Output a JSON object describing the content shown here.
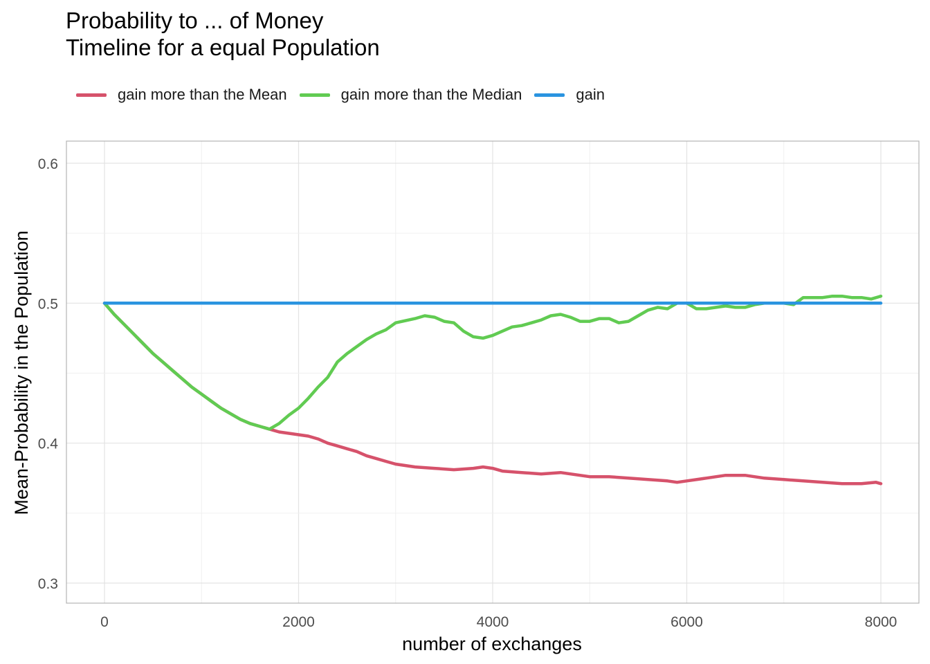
{
  "chart_data": {
    "type": "line",
    "title_line1": "Probability to ... of Money",
    "title_line2": "Timeline for a equal Population",
    "xlabel": "number of exchanges",
    "ylabel": "Mean-Probability in the Population",
    "xlim": [
      -400,
      8400
    ],
    "ylim": [
      0.285,
      0.615
    ],
    "x_ticks": [
      0,
      2000,
      4000,
      6000,
      8000
    ],
    "x_tick_labels": [
      "0",
      "2000",
      "4000",
      "6000",
      "8000"
    ],
    "y_ticks": [
      0.3,
      0.4,
      0.5,
      0.6
    ],
    "y_tick_labels": [
      "0.3",
      "0.4",
      "0.5",
      "0.6"
    ],
    "grid": true,
    "legend_position": "top-left",
    "series": [
      {
        "name": "gain more than the Mean",
        "color": "#d6526b",
        "points": [
          [
            0,
            0.5
          ],
          [
            100,
            0.492
          ],
          [
            200,
            0.485
          ],
          [
            300,
            0.478
          ],
          [
            400,
            0.471
          ],
          [
            500,
            0.464
          ],
          [
            600,
            0.458
          ],
          [
            700,
            0.452
          ],
          [
            800,
            0.446
          ],
          [
            900,
            0.44
          ],
          [
            1000,
            0.435
          ],
          [
            1100,
            0.43
          ],
          [
            1200,
            0.425
          ],
          [
            1300,
            0.421
          ],
          [
            1400,
            0.417
          ],
          [
            1500,
            0.414
          ],
          [
            1600,
            0.412
          ],
          [
            1700,
            0.41
          ],
          [
            1800,
            0.408
          ],
          [
            1900,
            0.407
          ],
          [
            2000,
            0.406
          ],
          [
            2100,
            0.405
          ],
          [
            2200,
            0.403
          ],
          [
            2300,
            0.4
          ],
          [
            2400,
            0.398
          ],
          [
            2500,
            0.396
          ],
          [
            2600,
            0.394
          ],
          [
            2700,
            0.391
          ],
          [
            2800,
            0.389
          ],
          [
            2900,
            0.387
          ],
          [
            3000,
            0.385
          ],
          [
            3200,
            0.383
          ],
          [
            3400,
            0.382
          ],
          [
            3600,
            0.381
          ],
          [
            3800,
            0.382
          ],
          [
            3900,
            0.383
          ],
          [
            4000,
            0.382
          ],
          [
            4100,
            0.38
          ],
          [
            4300,
            0.379
          ],
          [
            4500,
            0.378
          ],
          [
            4700,
            0.379
          ],
          [
            4900,
            0.377
          ],
          [
            5000,
            0.376
          ],
          [
            5200,
            0.376
          ],
          [
            5400,
            0.375
          ],
          [
            5600,
            0.374
          ],
          [
            5800,
            0.373
          ],
          [
            5900,
            0.372
          ],
          [
            6000,
            0.373
          ],
          [
            6200,
            0.375
          ],
          [
            6400,
            0.377
          ],
          [
            6600,
            0.377
          ],
          [
            6800,
            0.375
          ],
          [
            7000,
            0.374
          ],
          [
            7200,
            0.373
          ],
          [
            7400,
            0.372
          ],
          [
            7600,
            0.371
          ],
          [
            7800,
            0.371
          ],
          [
            7950,
            0.372
          ],
          [
            8000,
            0.371
          ]
        ]
      },
      {
        "name": "gain more than the Median",
        "color": "#61cb52",
        "points": [
          [
            0,
            0.5
          ],
          [
            100,
            0.492
          ],
          [
            200,
            0.485
          ],
          [
            300,
            0.478
          ],
          [
            400,
            0.471
          ],
          [
            500,
            0.464
          ],
          [
            600,
            0.458
          ],
          [
            700,
            0.452
          ],
          [
            800,
            0.446
          ],
          [
            900,
            0.44
          ],
          [
            1000,
            0.435
          ],
          [
            1100,
            0.43
          ],
          [
            1200,
            0.425
          ],
          [
            1300,
            0.421
          ],
          [
            1400,
            0.417
          ],
          [
            1500,
            0.414
          ],
          [
            1600,
            0.412
          ],
          [
            1700,
            0.41
          ],
          [
            1800,
            0.414
          ],
          [
            1900,
            0.42
          ],
          [
            2000,
            0.425
          ],
          [
            2100,
            0.432
          ],
          [
            2200,
            0.44
          ],
          [
            2300,
            0.447
          ],
          [
            2400,
            0.458
          ],
          [
            2500,
            0.464
          ],
          [
            2600,
            0.469
          ],
          [
            2700,
            0.474
          ],
          [
            2800,
            0.478
          ],
          [
            2900,
            0.481
          ],
          [
            3000,
            0.486
          ],
          [
            3200,
            0.489
          ],
          [
            3300,
            0.491
          ],
          [
            3400,
            0.49
          ],
          [
            3500,
            0.487
          ],
          [
            3600,
            0.486
          ],
          [
            3700,
            0.48
          ],
          [
            3800,
            0.476
          ],
          [
            3900,
            0.475
          ],
          [
            4000,
            0.477
          ],
          [
            4100,
            0.48
          ],
          [
            4200,
            0.483
          ],
          [
            4300,
            0.484
          ],
          [
            4400,
            0.486
          ],
          [
            4500,
            0.488
          ],
          [
            4600,
            0.491
          ],
          [
            4700,
            0.492
          ],
          [
            4800,
            0.49
          ],
          [
            4900,
            0.487
          ],
          [
            5000,
            0.487
          ],
          [
            5100,
            0.489
          ],
          [
            5200,
            0.489
          ],
          [
            5300,
            0.486
          ],
          [
            5400,
            0.487
          ],
          [
            5500,
            0.491
          ],
          [
            5600,
            0.495
          ],
          [
            5700,
            0.497
          ],
          [
            5800,
            0.496
          ],
          [
            5900,
            0.5
          ],
          [
            6000,
            0.5
          ],
          [
            6100,
            0.496
          ],
          [
            6200,
            0.496
          ],
          [
            6300,
            0.497
          ],
          [
            6400,
            0.498
          ],
          [
            6500,
            0.497
          ],
          [
            6600,
            0.497
          ],
          [
            6700,
            0.499
          ],
          [
            6800,
            0.5
          ],
          [
            6900,
            0.5
          ],
          [
            7000,
            0.5
          ],
          [
            7100,
            0.499
          ],
          [
            7200,
            0.504
          ],
          [
            7300,
            0.504
          ],
          [
            7400,
            0.504
          ],
          [
            7500,
            0.505
          ],
          [
            7600,
            0.505
          ],
          [
            7700,
            0.504
          ],
          [
            7800,
            0.504
          ],
          [
            7900,
            0.503
          ],
          [
            8000,
            0.505
          ]
        ]
      },
      {
        "name": "gain",
        "color": "#2a94e0",
        "points": [
          [
            0,
            0.5
          ],
          [
            8000,
            0.5
          ]
        ]
      }
    ]
  }
}
